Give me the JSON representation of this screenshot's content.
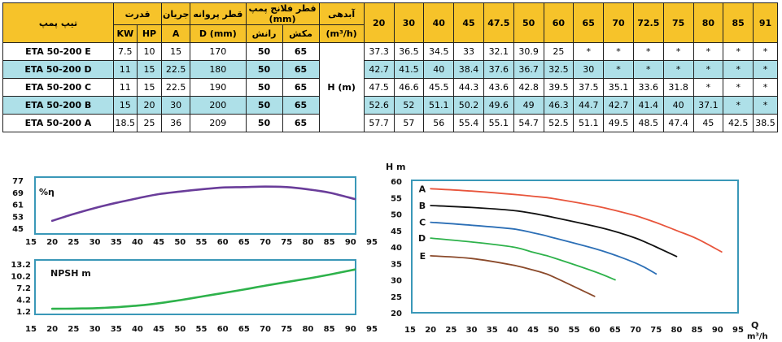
{
  "table": {
    "model_header": "تیپ پمپ",
    "power_header": "قدرت",
    "current_header": "جریان",
    "impeller_header": "قطر پروانه",
    "flange_header": "قطر فلانج پمپ (mm)",
    "flow_header": "آبدهی",
    "kw": "KW",
    "hp": "HP",
    "amp": "A",
    "dmm": "D (mm)",
    "discharge": "رانش",
    "suction": "مکش",
    "flow_unit": "(m³/h)",
    "head_label": "H (m)",
    "flows": [
      "20",
      "30",
      "40",
      "45",
      "47.5",
      "50",
      "60",
      "65",
      "70",
      "72.5",
      "75",
      "80",
      "85",
      "91"
    ],
    "rows": [
      {
        "model": "ETA 50-200 E",
        "kw": "7.5",
        "hp": "10",
        "a": "15",
        "d": "170",
        "dis": "50",
        "suc": "65",
        "heads": [
          "37.3",
          "36.5",
          "34.5",
          "33",
          "32.1",
          "30.9",
          "25",
          "*",
          "*",
          "*",
          "*",
          "*",
          "*",
          "*"
        ]
      },
      {
        "model": "ETA 50-200 D",
        "kw": "11",
        "hp": "15",
        "a": "22.5",
        "d": "180",
        "dis": "50",
        "suc": "65",
        "heads": [
          "42.7",
          "41.5",
          "40",
          "38.4",
          "37.6",
          "36.7",
          "32.5",
          "30",
          "*",
          "*",
          "*",
          "*",
          "*",
          "*"
        ]
      },
      {
        "model": "ETA 50-200 C",
        "kw": "11",
        "hp": "15",
        "a": "22.5",
        "d": "190",
        "dis": "50",
        "suc": "65",
        "heads": [
          "47.5",
          "46.6",
          "45.5",
          "44.3",
          "43.6",
          "42.8",
          "39.5",
          "37.5",
          "35.1",
          "33.6",
          "31.8",
          "*",
          "*",
          "*"
        ]
      },
      {
        "model": "ETA 50-200 B",
        "kw": "15",
        "hp": "20",
        "a": "30",
        "d": "200",
        "dis": "50",
        "suc": "65",
        "heads": [
          "52.6",
          "52",
          "51.1",
          "50.2",
          "49.6",
          "49",
          "46.3",
          "44.7",
          "42.7",
          "41.4",
          "40",
          "37.1",
          "*",
          "*"
        ]
      },
      {
        "model": "ETA 50-200 A",
        "kw": "18.5",
        "hp": "25",
        "a": "36",
        "d": "209",
        "dis": "50",
        "suc": "65",
        "heads": [
          "57.7",
          "57",
          "56",
          "55.4",
          "55.1",
          "54.7",
          "52.5",
          "51.1",
          "49.5",
          "48.5",
          "47.4",
          "45",
          "42.5",
          "38.5"
        ]
      }
    ]
  },
  "colors": {
    "header_bg": "#f6c32a",
    "teal_row": "#aee0e8",
    "frame": "#3a98b8",
    "eff_line": "#6a3d9a",
    "npsh_line": "#2eb24b",
    "A": "#e8553c",
    "B": "#111111",
    "C": "#2c6fb6",
    "D": "#2eb24b",
    "E": "#8b4a2b"
  },
  "chart_data": [
    {
      "type": "line",
      "title": "%η",
      "xlim": [
        15,
        95
      ],
      "xticks": [
        "15",
        "20",
        "25",
        "30",
        "35",
        "40",
        "45",
        "50",
        "55",
        "60",
        "65",
        "70",
        "75",
        "80",
        "85",
        "90",
        "95"
      ],
      "yticks": [
        "77",
        "69",
        "61",
        "53",
        "45"
      ],
      "ylim": [
        45,
        77
      ],
      "series": [
        {
          "x": [
            20,
            25,
            30,
            35,
            40,
            45,
            50,
            55,
            60,
            65,
            70,
            75,
            80,
            85,
            91
          ],
          "y": [
            50,
            54.5,
            58.5,
            62,
            65,
            67.8,
            69.5,
            71,
            72.2,
            72.5,
            72.8,
            72.5,
            71,
            68.8,
            64.5
          ]
        }
      ]
    },
    {
      "type": "line",
      "title": "NPSH m",
      "xlim": [
        15,
        95
      ],
      "xticks": [
        "15",
        "20",
        "25",
        "30",
        "35",
        "40",
        "45",
        "50",
        "55",
        "60",
        "65",
        "70",
        "75",
        "80",
        "85",
        "90",
        "95"
      ],
      "yticks": [
        "13.2",
        "10.2",
        "7.2",
        "4.2",
        "1.2"
      ],
      "ylim": [
        1.2,
        13.2
      ],
      "series": [
        {
          "x": [
            20,
            25,
            30,
            35,
            40,
            45,
            50,
            55,
            60,
            65,
            70,
            75,
            80,
            85,
            91
          ],
          "y": [
            1.8,
            1.85,
            1.95,
            2.2,
            2.6,
            3.2,
            4.0,
            4.9,
            5.8,
            6.7,
            7.7,
            8.6,
            9.5,
            10.5,
            11.8
          ]
        }
      ]
    },
    {
      "type": "line",
      "title": "H m",
      "xlabel": "Q",
      "xunit": "m³/h",
      "xlim": [
        15,
        95
      ],
      "ylim": [
        20,
        60
      ],
      "xticks": [
        "15",
        "20",
        "25",
        "30",
        "35",
        "40",
        "45",
        "50",
        "55",
        "60",
        "65",
        "70",
        "75",
        "80",
        "85",
        "90",
        "95"
      ],
      "yticks": [
        "60",
        "55",
        "50",
        "45",
        "40",
        "35",
        "30",
        "25",
        "20"
      ],
      "series": [
        {
          "name": "A",
          "x": [
            20,
            30,
            40,
            45,
            47.5,
            50,
            60,
            65,
            70,
            72.5,
            75,
            80,
            85,
            91
          ],
          "y": [
            57.7,
            57,
            56,
            55.4,
            55.1,
            54.7,
            52.5,
            51.1,
            49.5,
            48.5,
            47.4,
            45,
            42.5,
            38.5
          ]
        },
        {
          "name": "B",
          "x": [
            20,
            30,
            40,
            45,
            47.5,
            50,
            60,
            65,
            70,
            72.5,
            75,
            80
          ],
          "y": [
            52.6,
            52,
            51.1,
            50.2,
            49.6,
            49,
            46.3,
            44.7,
            42.7,
            41.4,
            40,
            37.1
          ]
        },
        {
          "name": "C",
          "x": [
            20,
            30,
            40,
            45,
            47.5,
            50,
            60,
            65,
            70,
            72.5,
            75
          ],
          "y": [
            47.5,
            46.6,
            45.5,
            44.3,
            43.6,
            42.8,
            39.5,
            37.5,
            35.1,
            33.6,
            31.8
          ]
        },
        {
          "name": "D",
          "x": [
            20,
            30,
            40,
            45,
            47.5,
            50,
            60,
            65
          ],
          "y": [
            42.7,
            41.5,
            40,
            38.4,
            37.6,
            36.7,
            32.5,
            30
          ]
        },
        {
          "name": "E",
          "x": [
            20,
            30,
            40,
            45,
            47.5,
            50,
            60
          ],
          "y": [
            37.3,
            36.5,
            34.5,
            33,
            32.1,
            30.9,
            25
          ]
        }
      ]
    }
  ]
}
